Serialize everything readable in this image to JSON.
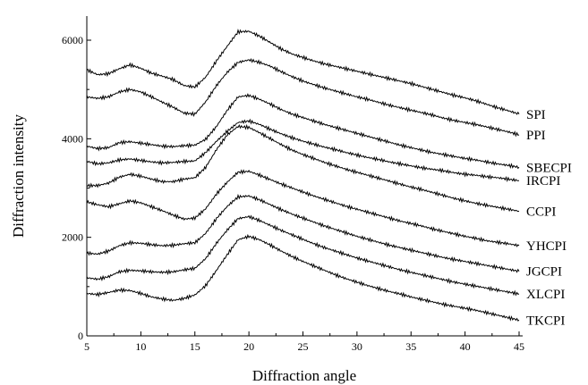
{
  "chart_data": {
    "type": "line",
    "title": "",
    "xlabel": "Diffraction angle",
    "ylabel": "Diffraction  intensity",
    "xlim": [
      5,
      45
    ],
    "ylim": [
      0,
      6500
    ],
    "xticks": [
      5,
      10,
      15,
      20,
      25,
      30,
      35,
      40,
      45
    ],
    "yticks": [
      0,
      2000,
      4000,
      6000
    ],
    "grid": false,
    "legend": "labels at right end of each curve",
    "x": [
      5,
      6,
      7,
      8,
      9,
      10,
      11,
      12,
      13,
      14,
      15,
      16,
      17,
      18,
      19,
      20,
      21,
      22,
      23,
      24,
      25,
      26,
      27,
      28,
      29,
      30,
      31,
      32,
      33,
      34,
      35,
      36,
      37,
      38,
      39,
      40,
      41,
      42,
      43,
      44,
      45
    ],
    "series": [
      {
        "name": "SPI",
        "values": [
          5400,
          5300,
          5320,
          5420,
          5500,
          5430,
          5330,
          5270,
          5200,
          5080,
          5050,
          5250,
          5580,
          5880,
          6170,
          6180,
          6080,
          5950,
          5820,
          5720,
          5650,
          5580,
          5520,
          5470,
          5420,
          5370,
          5320,
          5270,
          5220,
          5170,
          5120,
          5060,
          5000,
          4940,
          4880,
          4830,
          4770,
          4700,
          4630,
          4570,
          4500
        ]
      },
      {
        "name": "PPI",
        "values": [
          4850,
          4820,
          4850,
          4950,
          5000,
          4950,
          4850,
          4740,
          4640,
          4520,
          4500,
          4750,
          5080,
          5350,
          5550,
          5600,
          5550,
          5470,
          5360,
          5260,
          5170,
          5100,
          5030,
          4970,
          4910,
          4850,
          4800,
          4740,
          4680,
          4630,
          4580,
          4530,
          4480,
          4420,
          4370,
          4330,
          4290,
          4240,
          4190,
          4140,
          4080
        ]
      },
      {
        "name": "SBECPI",
        "values": [
          3850,
          3800,
          3820,
          3920,
          3940,
          3910,
          3880,
          3850,
          3840,
          3860,
          3870,
          3990,
          4250,
          4580,
          4850,
          4880,
          4800,
          4700,
          4590,
          4500,
          4430,
          4360,
          4290,
          4230,
          4170,
          4110,
          4050,
          3990,
          3930,
          3870,
          3820,
          3770,
          3720,
          3680,
          3640,
          3600,
          3570,
          3530,
          3490,
          3460,
          3420
        ]
      },
      {
        "name": "IRCPI",
        "values": [
          3540,
          3490,
          3510,
          3570,
          3590,
          3560,
          3530,
          3510,
          3520,
          3540,
          3550,
          3720,
          3950,
          4150,
          4330,
          4360,
          4290,
          4190,
          4100,
          4020,
          3950,
          3890,
          3830,
          3780,
          3720,
          3670,
          3620,
          3580,
          3530,
          3490,
          3450,
          3410,
          3380,
          3350,
          3310,
          3280,
          3260,
          3230,
          3210,
          3180,
          3150
        ]
      },
      {
        "name": "CCPI",
        "values": [
          3050,
          3050,
          3100,
          3220,
          3280,
          3240,
          3180,
          3130,
          3130,
          3180,
          3210,
          3420,
          3780,
          4080,
          4250,
          4230,
          4120,
          4000,
          3880,
          3770,
          3680,
          3600,
          3520,
          3450,
          3380,
          3320,
          3260,
          3200,
          3140,
          3080,
          3020,
          2970,
          2910,
          2850,
          2790,
          2740,
          2690,
          2650,
          2610,
          2570,
          2530
        ]
      },
      {
        "name": "YHCPI",
        "values": [
          2720,
          2660,
          2620,
          2680,
          2740,
          2700,
          2620,
          2540,
          2450,
          2370,
          2390,
          2580,
          2880,
          3120,
          3320,
          3340,
          3260,
          3170,
          3080,
          3000,
          2920,
          2840,
          2770,
          2700,
          2630,
          2570,
          2510,
          2450,
          2390,
          2330,
          2280,
          2230,
          2170,
          2120,
          2070,
          2020,
          1980,
          1930,
          1900,
          1870,
          1830
        ]
      },
      {
        "name": "JGCPI",
        "values": [
          1680,
          1660,
          1720,
          1830,
          1890,
          1880,
          1850,
          1830,
          1840,
          1870,
          1890,
          2080,
          2380,
          2630,
          2820,
          2840,
          2760,
          2660,
          2560,
          2470,
          2390,
          2310,
          2230,
          2160,
          2090,
          2020,
          1960,
          1900,
          1840,
          1790,
          1740,
          1690,
          1640,
          1590,
          1550,
          1510,
          1470,
          1430,
          1390,
          1350,
          1310
        ]
      },
      {
        "name": "XLCPI",
        "values": [
          1180,
          1150,
          1200,
          1300,
          1330,
          1320,
          1300,
          1290,
          1300,
          1340,
          1370,
          1570,
          1880,
          2150,
          2380,
          2420,
          2340,
          2240,
          2140,
          2050,
          1960,
          1870,
          1790,
          1720,
          1650,
          1580,
          1520,
          1460,
          1400,
          1340,
          1290,
          1240,
          1190,
          1140,
          1090,
          1050,
          1010,
          970,
          930,
          890,
          850
        ]
      },
      {
        "name": "TKCPI",
        "values": [
          860,
          840,
          880,
          930,
          920,
          860,
          790,
          750,
          720,
          760,
          830,
          1020,
          1330,
          1650,
          1950,
          2020,
          1950,
          1840,
          1720,
          1610,
          1510,
          1420,
          1330,
          1240,
          1160,
          1090,
          1020,
          960,
          900,
          850,
          790,
          740,
          690,
          640,
          600,
          560,
          520,
          470,
          420,
          370,
          320
        ]
      }
    ]
  }
}
